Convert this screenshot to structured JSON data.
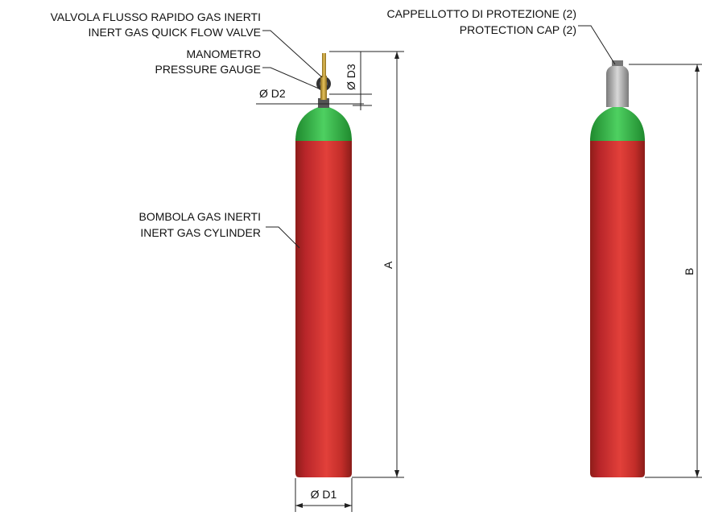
{
  "labels": {
    "valve_it": "VALVOLA FLUSSO RAPIDO GAS INERTI",
    "valve_en": "INERT GAS QUICK FLOW VALVE",
    "gauge_it": "MANOMETRO",
    "gauge_en": "PRESSURE GAUGE",
    "cylinder_it": "BOMBOLA GAS INERTI",
    "cylinder_en": "INERT GAS CYLINDER",
    "cap_it": "CAPPELLOTTO DI PROTEZIONE (2)",
    "cap_en": "PROTECTION CAP (2)"
  },
  "dimensions": {
    "d1": "Ø D1",
    "d2": "Ø D2",
    "d3": "Ø D3",
    "a": "A",
    "b": "B"
  },
  "colors": {
    "body": "#c8302b",
    "shoulder": "#35b546",
    "cap": "#b9b9b9",
    "valve": "#c9a13a"
  }
}
